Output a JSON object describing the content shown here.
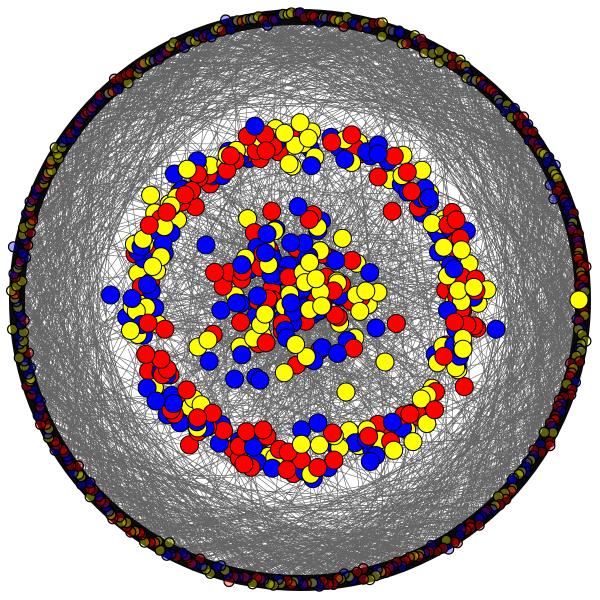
{
  "diagram": {
    "type": "network-graph",
    "layout": "concentric-circular",
    "background_color": "#ffffff",
    "edge_color": "#4a4a4a",
    "node_stroke_color": "#000000",
    "node_colors": {
      "red": "#ff0000",
      "blue": "#0000ff",
      "yellow": "#ffff00"
    },
    "groups": [
      {
        "name": "outer-ring",
        "colors": [
          "red",
          "blue",
          "yellow"
        ],
        "node_count": 420
      },
      {
        "name": "middle-ring",
        "colors": [
          "red",
          "blue",
          "yellow"
        ],
        "node_count": 330
      },
      {
        "name": "inner-cluster",
        "colors": [
          "red",
          "blue",
          "yellow"
        ],
        "node_count": 150
      },
      {
        "name": "isolated-node",
        "colors": [
          "yellow"
        ],
        "node_count": 1
      }
    ]
  }
}
